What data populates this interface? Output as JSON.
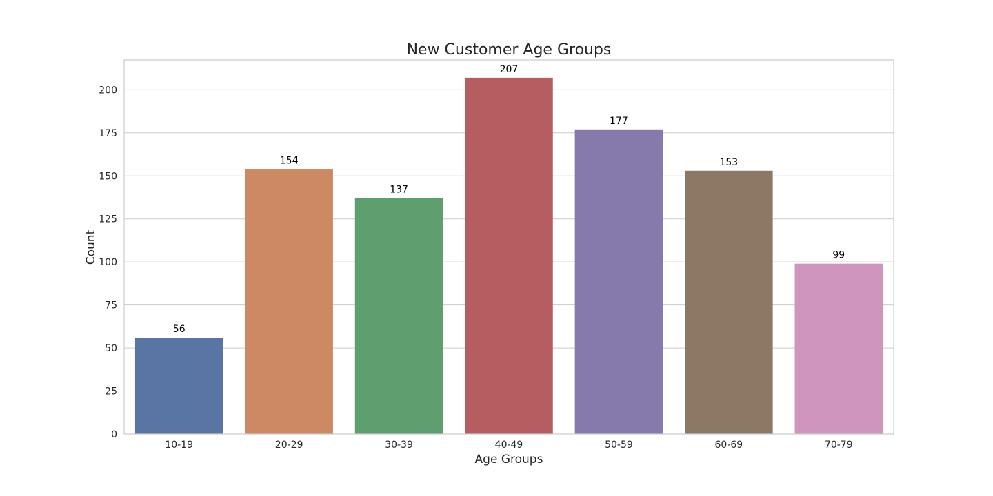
{
  "chart_data": {
    "type": "bar",
    "title": "New Customer Age Groups",
    "xlabel": "Age Groups",
    "ylabel": "Count",
    "categories": [
      "10-19",
      "20-29",
      "30-39",
      "40-49",
      "50-59",
      "60-69",
      "70-79"
    ],
    "values": [
      56,
      154,
      137,
      207,
      177,
      153,
      99
    ],
    "colors": [
      "#5875a4",
      "#cc8963",
      "#5f9e6e",
      "#b55d60",
      "#857aab",
      "#8d7866",
      "#d095bf"
    ],
    "yticks": [
      0,
      25,
      50,
      75,
      100,
      125,
      150,
      175,
      200
    ],
    "ylim": [
      0,
      217.35
    ],
    "grid": "horizontal",
    "legend": "none"
  }
}
